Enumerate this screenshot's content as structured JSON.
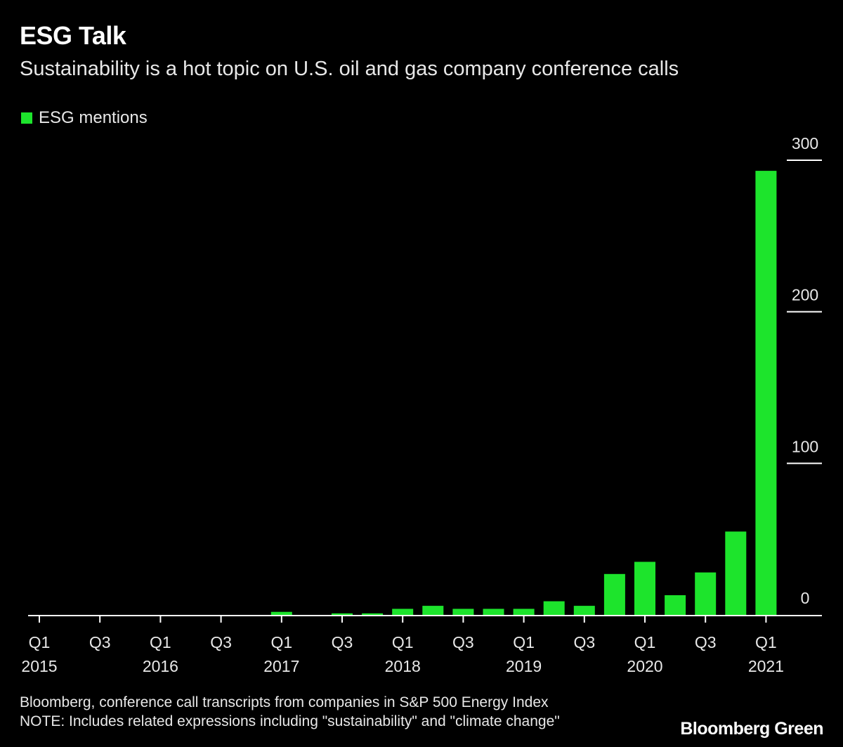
{
  "header": {
    "title": "ESG Talk",
    "subtitle": "Sustainability is a hot topic on U.S. oil and gas company conference calls"
  },
  "colors": {
    "background": "#000000",
    "bar": "#1de42c",
    "text": "#ffffff"
  },
  "footer": {
    "source": "Bloomberg, conference call transcripts from companies in S&P 500 Energy Index",
    "note": "NOTE: Includes related expressions including \"sustainability\" and \"climate change\"",
    "brand": "Bloomberg Green"
  },
  "chart_data": {
    "type": "bar",
    "title": "ESG Talk",
    "subtitle": "Sustainability is a hot topic on U.S. oil and gas company conference calls",
    "legend": {
      "position": "top-left",
      "entries": [
        "ESG mentions"
      ]
    },
    "series": [
      {
        "name": "ESG mentions",
        "values": [
          0,
          0,
          0,
          0,
          0,
          0,
          0,
          0,
          2,
          0,
          1,
          1,
          4,
          6,
          4,
          4,
          4,
          9,
          6,
          27,
          35,
          13,
          28,
          55,
          293
        ]
      }
    ],
    "categories": [
      "Q1 2015",
      "Q2 2015",
      "Q3 2015",
      "Q4 2015",
      "Q1 2016",
      "Q2 2016",
      "Q3 2016",
      "Q4 2016",
      "Q1 2017",
      "Q2 2017",
      "Q3 2017",
      "Q4 2017",
      "Q1 2018",
      "Q2 2018",
      "Q3 2018",
      "Q4 2018",
      "Q1 2019",
      "Q2 2019",
      "Q3 2019",
      "Q4 2019",
      "Q1 2020",
      "Q2 2020",
      "Q3 2020",
      "Q4 2020",
      "Q1 2021"
    ],
    "x_ticks": [
      {
        "index": 0,
        "quarter": "Q1",
        "year": "2015"
      },
      {
        "index": 2,
        "quarter": "Q3",
        "year": ""
      },
      {
        "index": 4,
        "quarter": "Q1",
        "year": "2016"
      },
      {
        "index": 6,
        "quarter": "Q3",
        "year": ""
      },
      {
        "index": 8,
        "quarter": "Q1",
        "year": "2017"
      },
      {
        "index": 10,
        "quarter": "Q3",
        "year": ""
      },
      {
        "index": 12,
        "quarter": "Q1",
        "year": "2018"
      },
      {
        "index": 14,
        "quarter": "Q3",
        "year": ""
      },
      {
        "index": 16,
        "quarter": "Q1",
        "year": "2019"
      },
      {
        "index": 18,
        "quarter": "Q3",
        "year": ""
      },
      {
        "index": 20,
        "quarter": "Q1",
        "year": "2020"
      },
      {
        "index": 22,
        "quarter": "Q3",
        "year": ""
      },
      {
        "index": 24,
        "quarter": "Q1",
        "year": "2021"
      }
    ],
    "y_ticks": [
      0,
      100,
      200,
      300
    ],
    "y_axis_position": "right",
    "ylim": [
      0,
      300
    ],
    "xlabel": "",
    "ylabel": "",
    "grid": false
  }
}
